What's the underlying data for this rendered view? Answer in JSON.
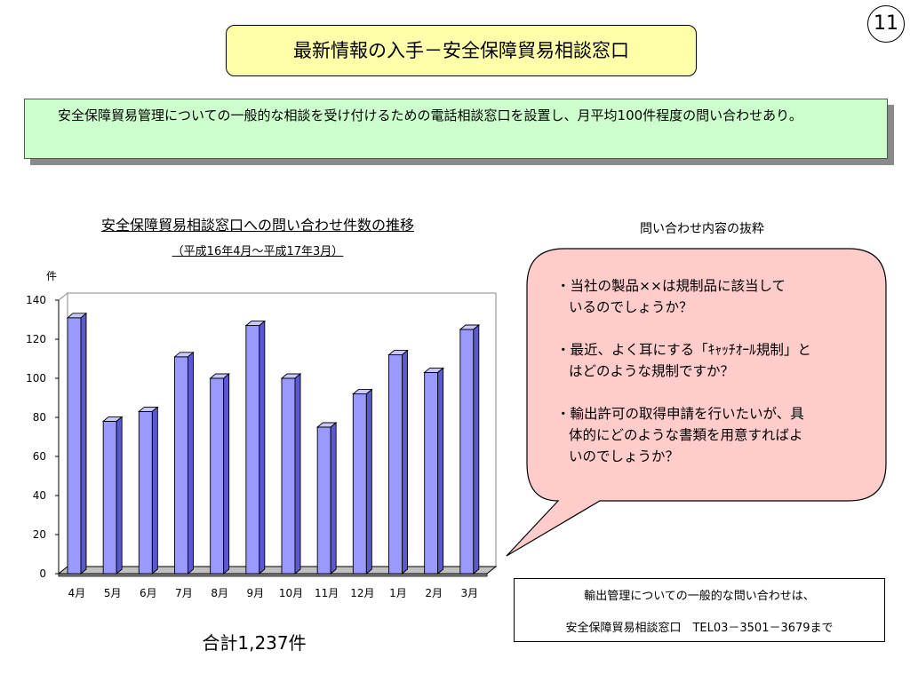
{
  "page_number": "11",
  "title": "最新情報の入手－安全保障貿易相談窓口",
  "info_text": "安全保障貿易管理についての一般的な相談を受け付けるための電話相談窓口を設置し、月平均100件程度の問い合わせあり。",
  "chart_data": {
    "type": "bar",
    "title": "安全保障貿易相談窓口への問い合わせ件数の推移",
    "subtitle": "（平成16年4月～平成17年3月）",
    "ylabel": "件",
    "xlabel": "",
    "categories": [
      "4月",
      "5月",
      "6月",
      "7月",
      "8月",
      "9月",
      "10月",
      "11月",
      "12月",
      "1月",
      "2月",
      "3月"
    ],
    "values": [
      131,
      78,
      83,
      111,
      100,
      127,
      100,
      75,
      92,
      112,
      103,
      125
    ],
    "ylim": [
      0,
      140
    ],
    "yticks": [
      0,
      20,
      40,
      60,
      80,
      100,
      120,
      140
    ],
    "bar_color": "#9999ff",
    "grid": false,
    "style": "3d"
  },
  "total": "合計1,237件",
  "excerpt_title": "問い合わせ内容の抜粋",
  "bubble_color": "#ffcccc",
  "questions": [
    {
      "line1": "・当社の製品××は規制品に該当して",
      "line2": "いるのでしょうか？"
    },
    {
      "line1": "・最近、よく耳にする「ｷｬｯﾁｵｰﾙ規制」と",
      "line2": "はどのような規制ですか？"
    },
    {
      "line1": "・輸出許可の取得申請を行いたいが、具",
      "line2": "体的にどのような書類を用意すればよ",
      "line3": "いのでしょうか？"
    }
  ],
  "contact": {
    "line1": "輸出管理についての一般的な問い合わせは、",
    "line2": "安全保障貿易相談窓口　TEL03－3501－3679まで"
  }
}
